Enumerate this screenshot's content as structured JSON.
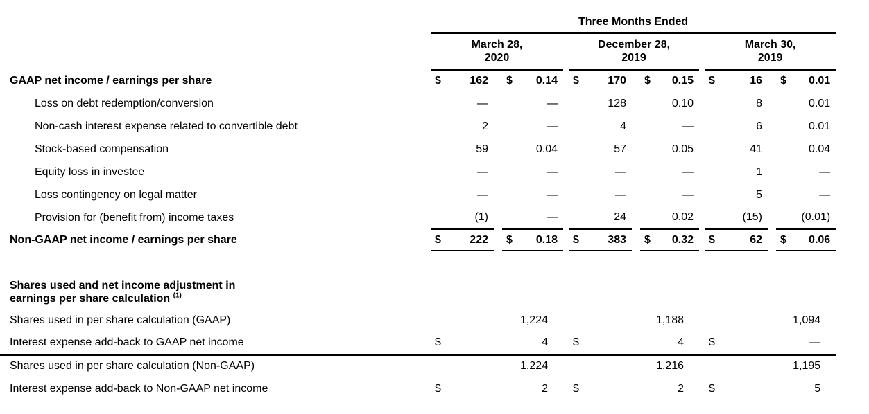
{
  "header": {
    "period_label": "Three Months Ended",
    "column_groups": [
      {
        "line1": "March 28,",
        "line2": "2020"
      },
      {
        "line1": "December 28,",
        "line2": "2019"
      },
      {
        "line1": "March 30,",
        "line2": "2019"
      }
    ]
  },
  "reconciliation": {
    "rows": [
      {
        "label": "GAAP net income / earnings per share",
        "bold": true,
        "indent": false,
        "underline_below": false,
        "total": false,
        "cells": [
          {
            "d": "$",
            "v": "162"
          },
          {
            "d": "$",
            "v": "0.14"
          },
          {
            "d": "$",
            "v": "170"
          },
          {
            "d": "$",
            "v": "0.15"
          },
          {
            "d": "$",
            "v": "16"
          },
          {
            "d": "$",
            "v": "0.01"
          }
        ]
      },
      {
        "label": "Loss on debt redemption/conversion",
        "bold": false,
        "indent": true,
        "underline_below": false,
        "total": false,
        "cells": [
          {
            "d": "",
            "v": "—"
          },
          {
            "d": "",
            "v": "—"
          },
          {
            "d": "",
            "v": "128"
          },
          {
            "d": "",
            "v": "0.10"
          },
          {
            "d": "",
            "v": "8"
          },
          {
            "d": "",
            "v": "0.01"
          }
        ]
      },
      {
        "label": "Non-cash interest expense related to convertible debt",
        "bold": false,
        "indent": true,
        "underline_below": false,
        "total": false,
        "cells": [
          {
            "d": "",
            "v": "2"
          },
          {
            "d": "",
            "v": "—"
          },
          {
            "d": "",
            "v": "4"
          },
          {
            "d": "",
            "v": "—"
          },
          {
            "d": "",
            "v": "6"
          },
          {
            "d": "",
            "v": "0.01"
          }
        ]
      },
      {
        "label": "Stock-based compensation",
        "bold": false,
        "indent": true,
        "underline_below": false,
        "total": false,
        "cells": [
          {
            "d": "",
            "v": "59"
          },
          {
            "d": "",
            "v": "0.04"
          },
          {
            "d": "",
            "v": "57"
          },
          {
            "d": "",
            "v": "0.05"
          },
          {
            "d": "",
            "v": "41"
          },
          {
            "d": "",
            "v": "0.04"
          }
        ]
      },
      {
        "label": "Equity loss in investee",
        "bold": false,
        "indent": true,
        "underline_below": false,
        "total": false,
        "cells": [
          {
            "d": "",
            "v": "—"
          },
          {
            "d": "",
            "v": "—"
          },
          {
            "d": "",
            "v": "—"
          },
          {
            "d": "",
            "v": "—"
          },
          {
            "d": "",
            "v": "1"
          },
          {
            "d": "",
            "v": "—"
          }
        ]
      },
      {
        "label": "Loss contingency on legal matter",
        "bold": false,
        "indent": true,
        "underline_below": false,
        "total": false,
        "cells": [
          {
            "d": "",
            "v": "—"
          },
          {
            "d": "",
            "v": "—"
          },
          {
            "d": "",
            "v": "—"
          },
          {
            "d": "",
            "v": "—"
          },
          {
            "d": "",
            "v": "5"
          },
          {
            "d": "",
            "v": "—"
          }
        ]
      },
      {
        "label": "Provision for (benefit from) income taxes",
        "bold": false,
        "indent": true,
        "underline_below": true,
        "total": false,
        "cells": [
          {
            "d": "",
            "v": "(1)"
          },
          {
            "d": "",
            "v": "—"
          },
          {
            "d": "",
            "v": "24"
          },
          {
            "d": "",
            "v": "0.02"
          },
          {
            "d": "",
            "v": "(15)"
          },
          {
            "d": "",
            "v": "(0.01)"
          }
        ]
      },
      {
        "label": "Non-GAAP net income / earnings per share",
        "bold": true,
        "indent": false,
        "underline_below": true,
        "total": true,
        "cells": [
          {
            "d": "$",
            "v": "222"
          },
          {
            "d": "$",
            "v": "0.18"
          },
          {
            "d": "$",
            "v": "383"
          },
          {
            "d": "$",
            "v": "0.32"
          },
          {
            "d": "$",
            "v": "62"
          },
          {
            "d": "$",
            "v": "0.06"
          }
        ]
      }
    ]
  },
  "shares_section": {
    "heading_line1": "Shares used and net income adjustment in",
    "heading_line2": "earnings per share calculation",
    "heading_superscript": "(1)",
    "rows": [
      {
        "label": "Shares used in per share calculation (GAAP)",
        "rule_below": false,
        "cells": [
          {
            "d": "",
            "v": "1,224"
          },
          {
            "d": "",
            "v": "1,188"
          },
          {
            "d": "",
            "v": "1,094"
          }
        ]
      },
      {
        "label": "Interest expense add-back to GAAP net income",
        "rule_below": true,
        "cells": [
          {
            "d": "$",
            "v": "4"
          },
          {
            "d": "$",
            "v": "4"
          },
          {
            "d": "$",
            "v": "—"
          }
        ]
      },
      {
        "label": "Shares used in per share calculation (Non-GAAP)",
        "rule_below": false,
        "cells": [
          {
            "d": "",
            "v": "1,224"
          },
          {
            "d": "",
            "v": "1,216"
          },
          {
            "d": "",
            "v": "1,195"
          }
        ]
      },
      {
        "label": "Interest expense add-back to Non-GAAP net income",
        "rule_below": false,
        "cells": [
          {
            "d": "$",
            "v": "2"
          },
          {
            "d": "$",
            "v": "2"
          },
          {
            "d": "$",
            "v": "5"
          }
        ]
      }
    ]
  }
}
